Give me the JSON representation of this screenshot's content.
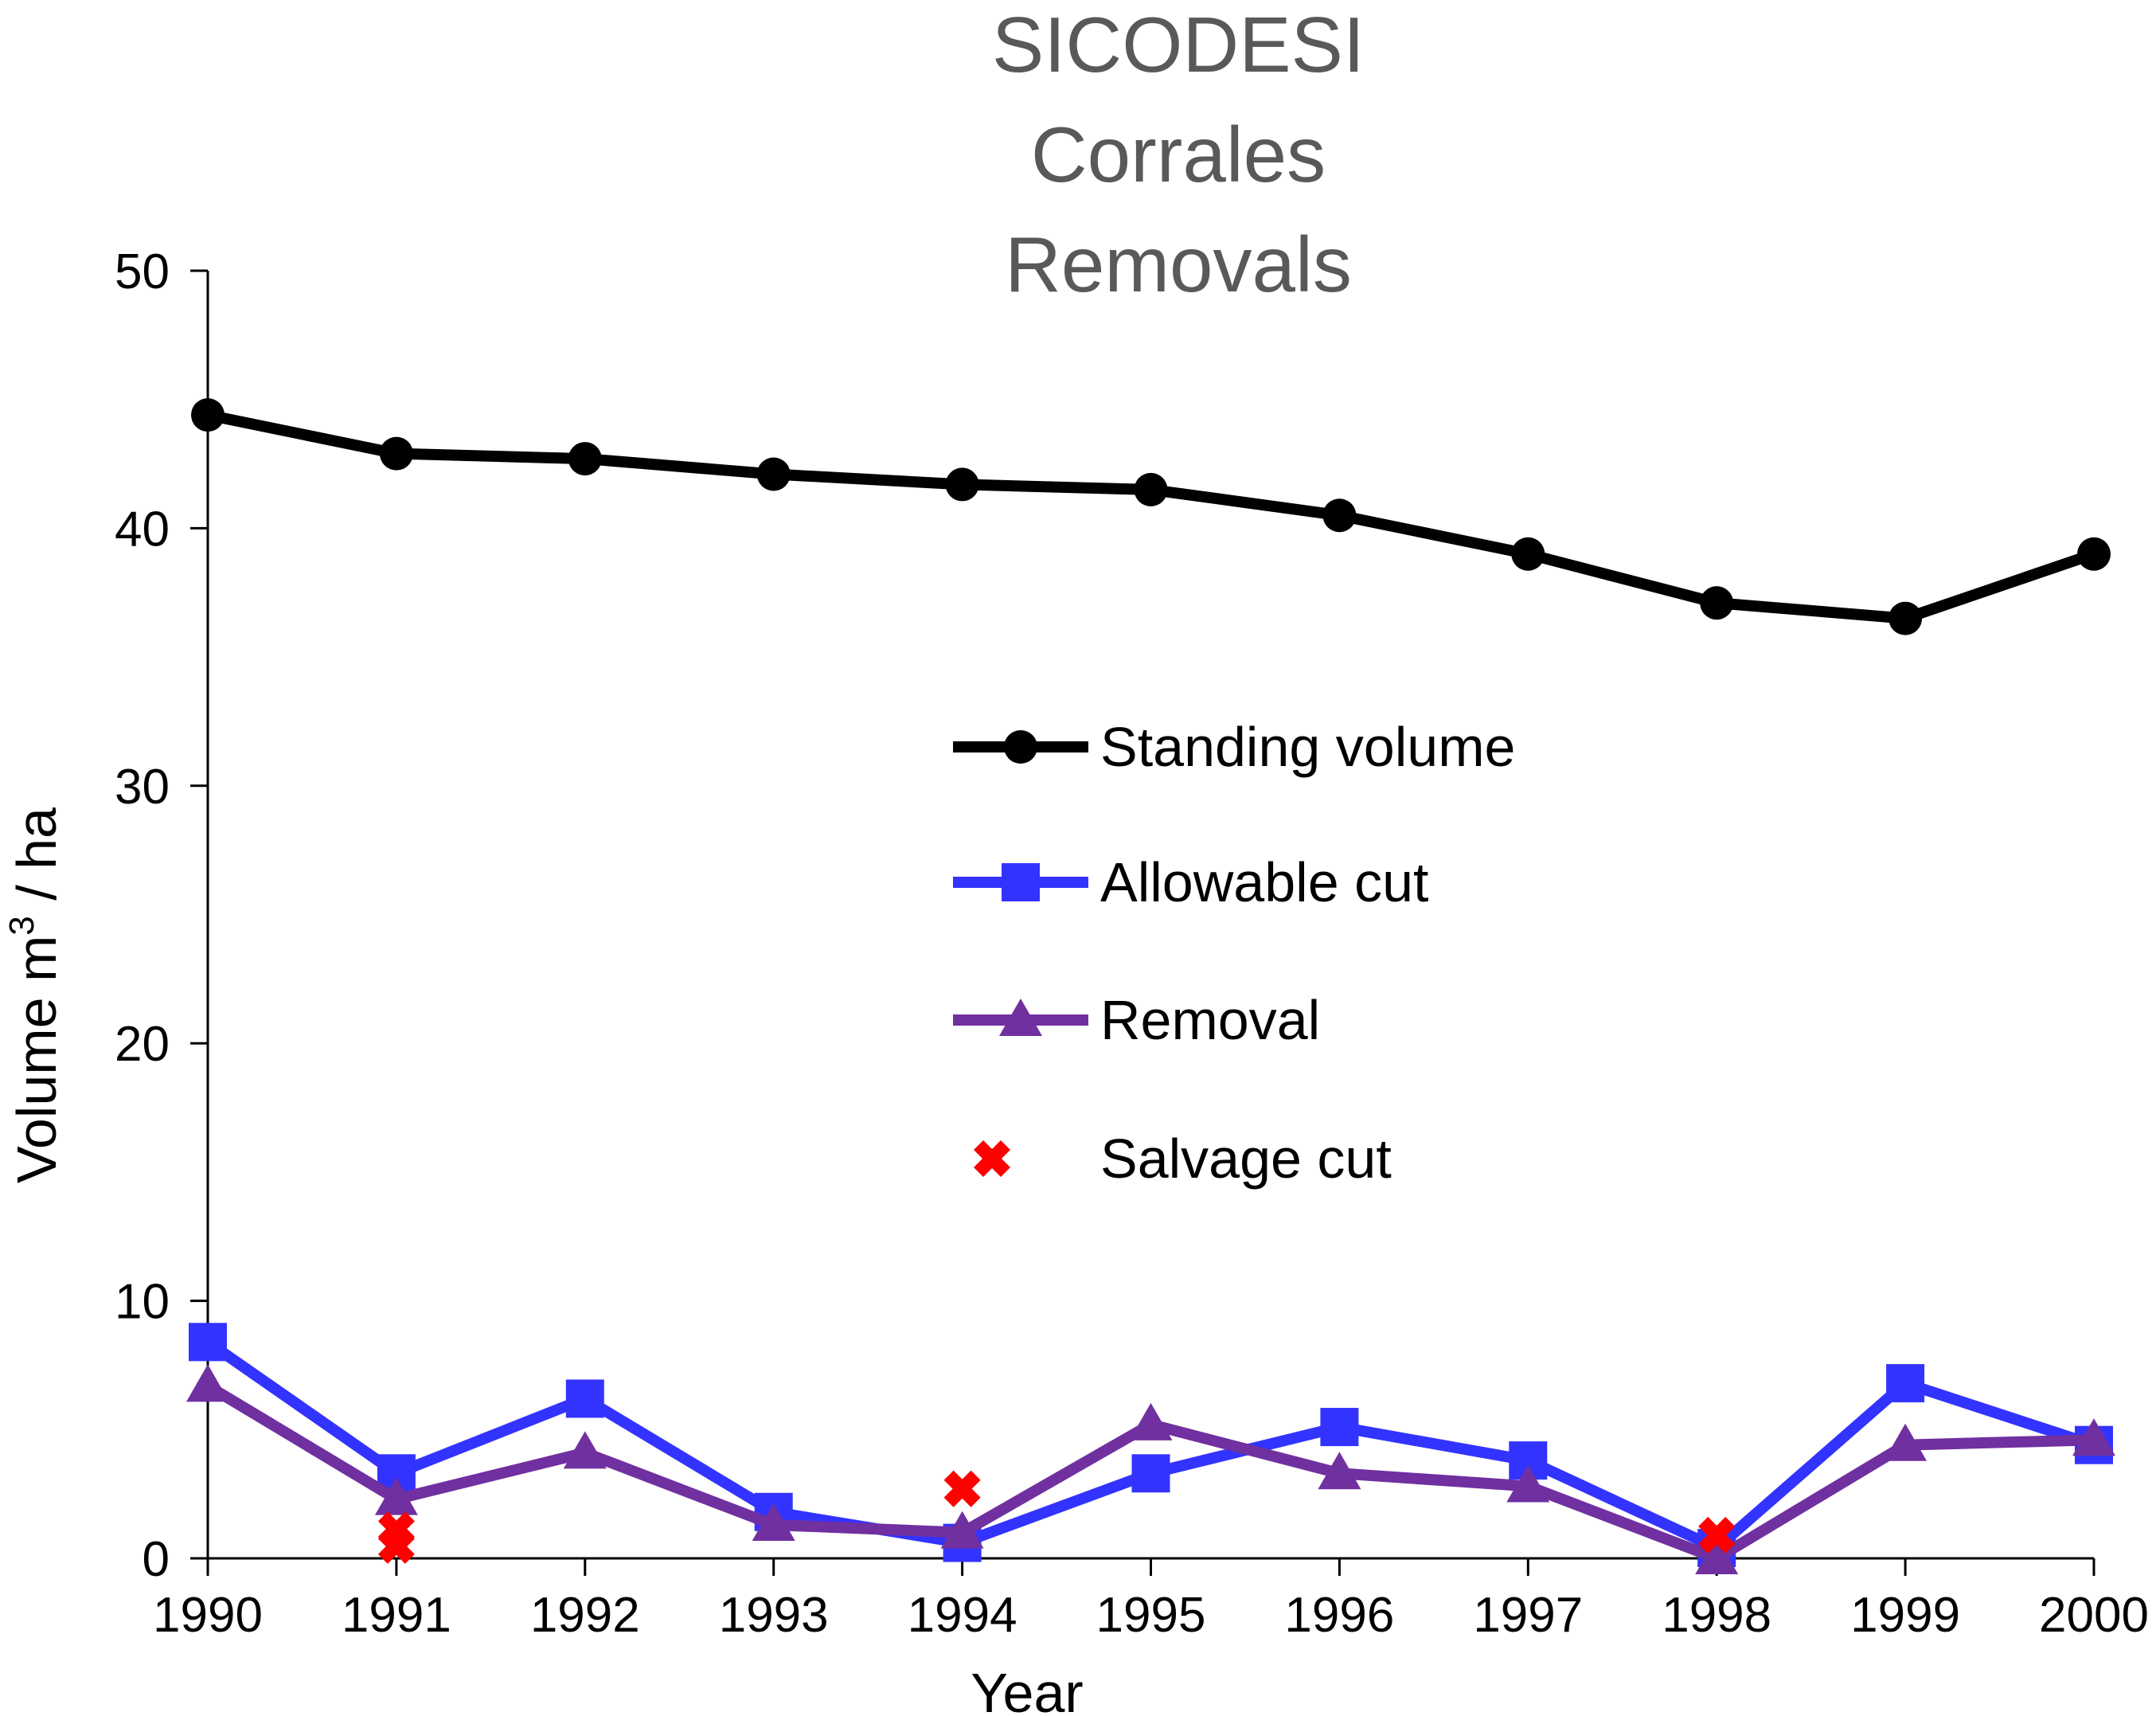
{
  "chart_data": {
    "type": "line",
    "title": [
      "SICODESI",
      "Corrales",
      "Removals"
    ],
    "xlabel": "Year",
    "ylabel": {
      "prefix": "Volume m",
      "superscript": "3",
      "suffix": " / ha"
    },
    "categories": [
      "1990",
      "1991",
      "1992",
      "1993",
      "1994",
      "1995",
      "1996",
      "1997",
      "1998",
      "1999",
      "2000"
    ],
    "ylim": [
      0,
      50
    ],
    "yticks": [
      "0",
      "10",
      "20",
      "30",
      "40",
      "50"
    ],
    "grid": false,
    "legend_position": "center",
    "series": [
      {
        "name": "Standing volume",
        "marker": "circle",
        "color": "#000000",
        "values": [
          44.4,
          42.9,
          42.7,
          42.1,
          41.7,
          41.5,
          40.5,
          39.0,
          37.1,
          36.5,
          39.0
        ]
      },
      {
        "name": "Allowable cut",
        "marker": "square",
        "color": "#3333FF",
        "values": [
          8.4,
          3.3,
          6.2,
          1.8,
          0.6,
          3.3,
          5.1,
          3.8,
          0.4,
          6.8,
          4.4
        ]
      },
      {
        "name": "Removal",
        "marker": "triangle",
        "color": "#7030A0",
        "values": [
          6.7,
          2.3,
          4.1,
          1.3,
          1.0,
          5.2,
          3.3,
          2.8,
          0.0,
          4.4,
          4.6
        ]
      },
      {
        "name": "Salvage cut",
        "marker": "x",
        "color": "#FF0000",
        "line": false,
        "points": [
          {
            "x": "1991",
            "y": 0.5
          },
          {
            "x": "1991",
            "y": 1.1
          },
          {
            "x": "1994",
            "y": 2.7
          },
          {
            "x": "1998",
            "y": 0.9
          }
        ]
      }
    ]
  }
}
